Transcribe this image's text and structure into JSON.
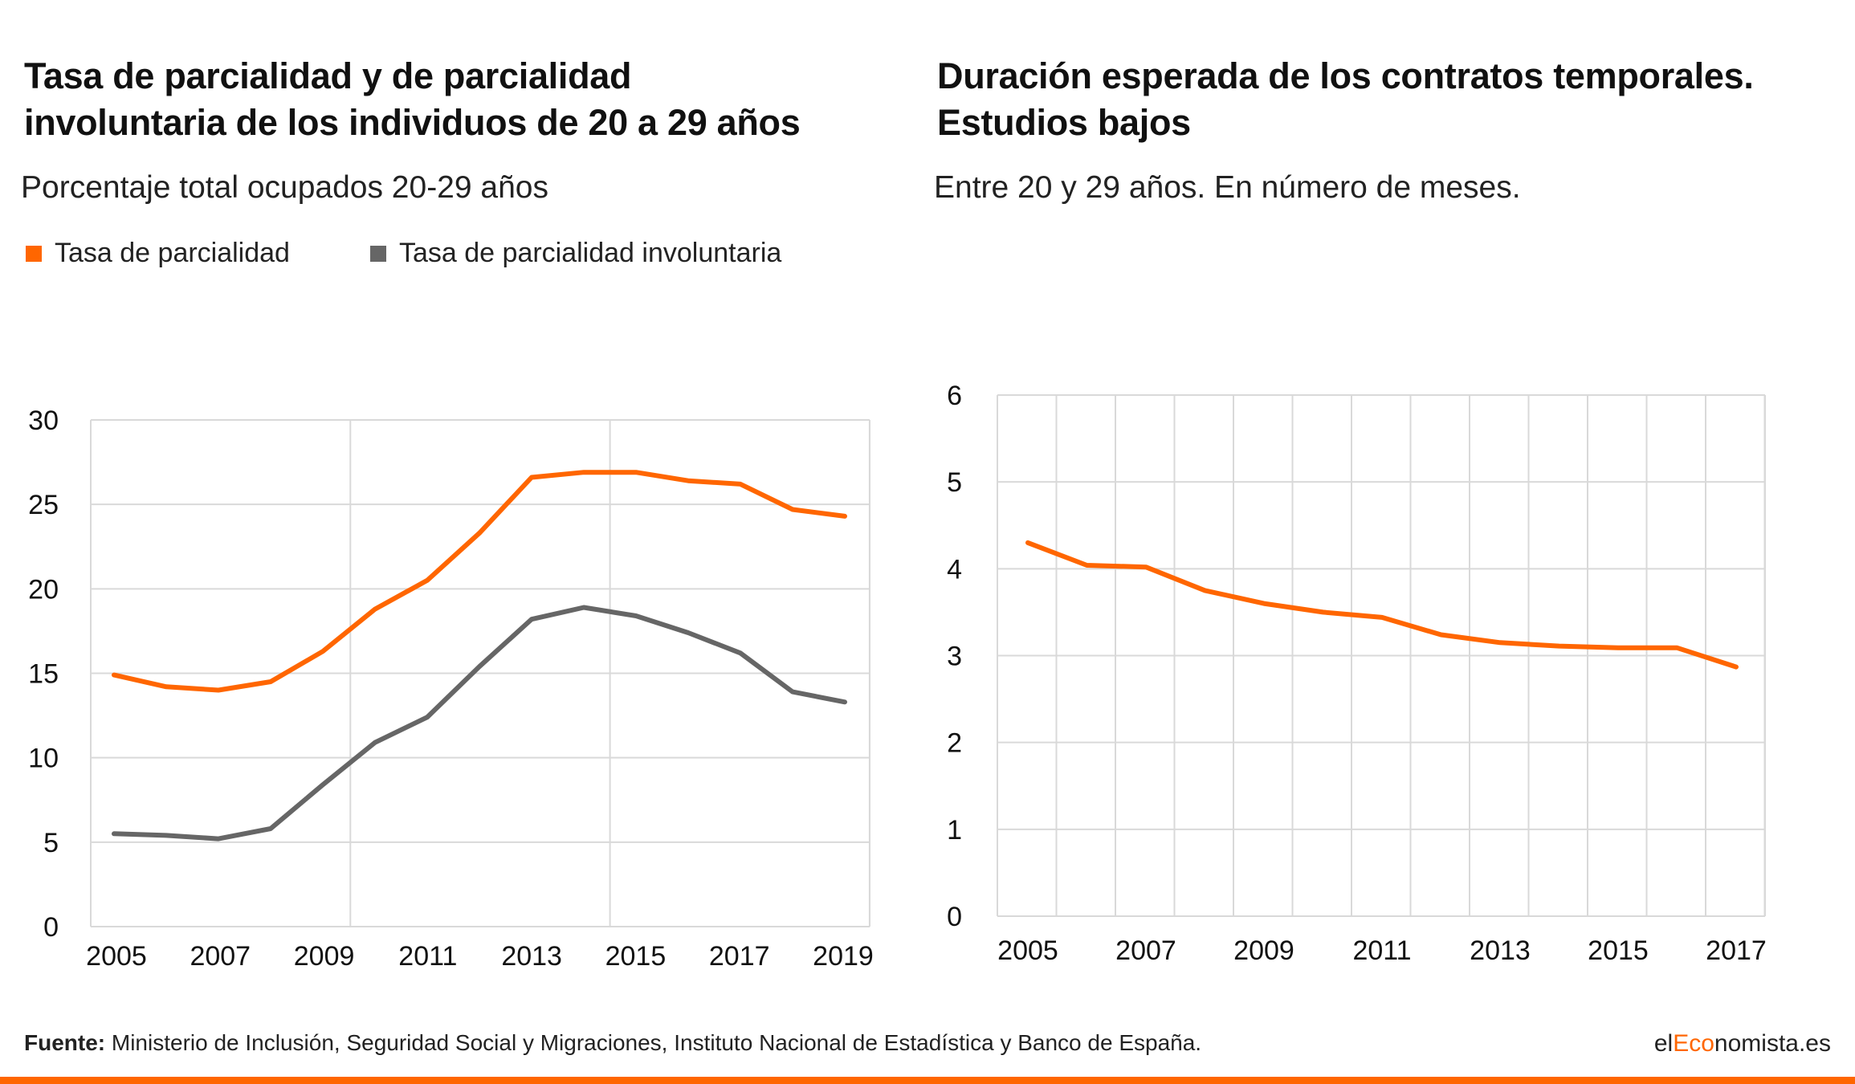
{
  "colors": {
    "accent": "#ff6600",
    "gray": "#666666",
    "grid": "#d9d9d9"
  },
  "left": {
    "title_line1": "Tasa de parcialidad y de parcialidad",
    "title_line2": "involuntaria de los individuos de 20 a 29 años",
    "subtitle": "Porcentaje total ocupados 20-29 años",
    "legend": [
      "Tasa de parcialidad",
      "Tasa de parcialidad involuntaria"
    ]
  },
  "right": {
    "title_line1": "Duración esperada de los contratos temporales.",
    "title_line2": "Estudios bajos",
    "subtitle": "Entre 20 y 29 años. En número de meses."
  },
  "footer": {
    "source_label": "Fuente:",
    "source_text": " Ministerio de Inclusión, Seguridad Social y Migraciones, Instituto Nacional de Estadística y Banco de España.",
    "logo_el": "el",
    "logo_eco": "Eco",
    "logo_rest": "nomista.es"
  },
  "chart_data": [
    {
      "type": "line",
      "x": [
        2005,
        2006,
        2007,
        2008,
        2009,
        2010,
        2011,
        2012,
        2013,
        2014,
        2015,
        2016,
        2017,
        2018,
        2019
      ],
      "xticks": [
        "2005",
        "2007",
        "2009",
        "2011",
        "2013",
        "2015",
        "2017",
        "2019"
      ],
      "yticks": [
        "0",
        "5",
        "10",
        "15",
        "20",
        "25",
        "30"
      ],
      "ylim": [
        0,
        30
      ],
      "grid": true,
      "legend_position": "top-left",
      "series": [
        {
          "name": "Tasa de parcialidad",
          "color": "#ff6600",
          "values": [
            14.9,
            14.2,
            14.0,
            14.5,
            16.3,
            18.8,
            20.5,
            23.3,
            26.6,
            26.9,
            26.9,
            26.4,
            26.2,
            24.7,
            24.3
          ]
        },
        {
          "name": "Tasa de parcialidad involuntaria",
          "color": "#666666",
          "values": [
            5.5,
            5.4,
            5.2,
            5.8,
            8.4,
            10.9,
            12.4,
            15.4,
            18.2,
            18.9,
            18.4,
            17.4,
            16.2,
            13.9,
            13.3
          ]
        }
      ]
    },
    {
      "type": "line",
      "x": [
        2005,
        2006,
        2007,
        2008,
        2009,
        2010,
        2011,
        2012,
        2013,
        2014,
        2015,
        2016,
        2017
      ],
      "xticks": [
        "2005",
        "2007",
        "2009",
        "2011",
        "2013",
        "2015",
        "2017"
      ],
      "yticks": [
        "0",
        "1",
        "2",
        "3",
        "4",
        "5",
        "6"
      ],
      "ylim": [
        0,
        6
      ],
      "grid": true,
      "series": [
        {
          "color": "#ff6600",
          "values": [
            4.3,
            4.04,
            4.02,
            3.75,
            3.6,
            3.5,
            3.44,
            3.24,
            3.15,
            3.11,
            3.09,
            3.09,
            2.87
          ]
        }
      ]
    }
  ]
}
